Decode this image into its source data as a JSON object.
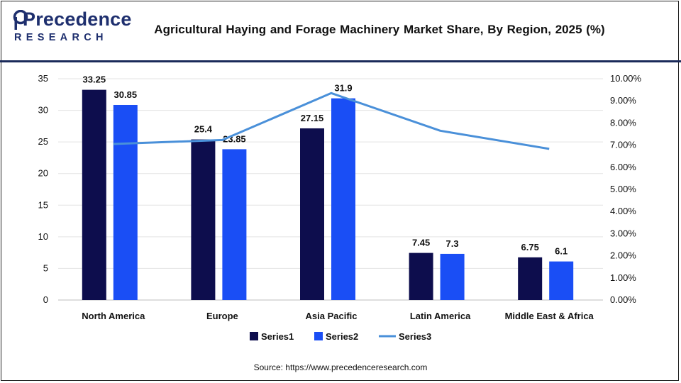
{
  "brand": {
    "logo_top": "Precedence",
    "logo_bottom": "RESEARCH",
    "color": "#1e2f6e"
  },
  "title": "Agricultural Haying and Forage Machinery Market Share, By Region, 2025 (%)",
  "source": "Source: https://www.precedenceresearch.com",
  "chart_data": {
    "type": "bar",
    "title": "Agricultural Haying and Forage Machinery Market Share, By Region, 2025 (%)",
    "categories": [
      "North America",
      "Europe",
      "Asia Pacific",
      "Latin America",
      "Middle East & Africa"
    ],
    "series": [
      {
        "name": "Series1",
        "type": "bar",
        "axis": "left",
        "color": "#0d0d4d",
        "values": [
          33.25,
          25.4,
          27.15,
          7.45,
          6.75
        ]
      },
      {
        "name": "Series2",
        "type": "bar",
        "axis": "right-hand bars share left axis",
        "color": "#1a4ef5",
        "values": [
          30.85,
          23.85,
          31.9,
          7.3,
          6.1
        ]
      },
      {
        "name": "Series3",
        "type": "line",
        "axis": "right",
        "color": "#4a90d9",
        "values": [
          0.0705,
          0.0723,
          0.0935,
          0.0765,
          0.0683
        ]
      }
    ],
    "data_labels": {
      "Series1": [
        "33.25",
        "25.4",
        "27.15",
        "7.45",
        "6.75"
      ],
      "Series2": [
        "30.85",
        "23.85",
        "31.9",
        "7.3",
        "6.1"
      ]
    },
    "y_left": {
      "min": 0,
      "max": 35,
      "ticks": [
        "0",
        "5",
        "10",
        "15",
        "20",
        "25",
        "30",
        "35"
      ]
    },
    "y_right": {
      "min": 0,
      "max": 0.1,
      "ticks": [
        "0.00%",
        "1.00%",
        "2.00%",
        "3.00%",
        "4.00%",
        "5.00%",
        "6.00%",
        "7.00%",
        "8.00%",
        "9.00%",
        "10.00%"
      ]
    },
    "grid": true,
    "legend_position": "bottom"
  }
}
